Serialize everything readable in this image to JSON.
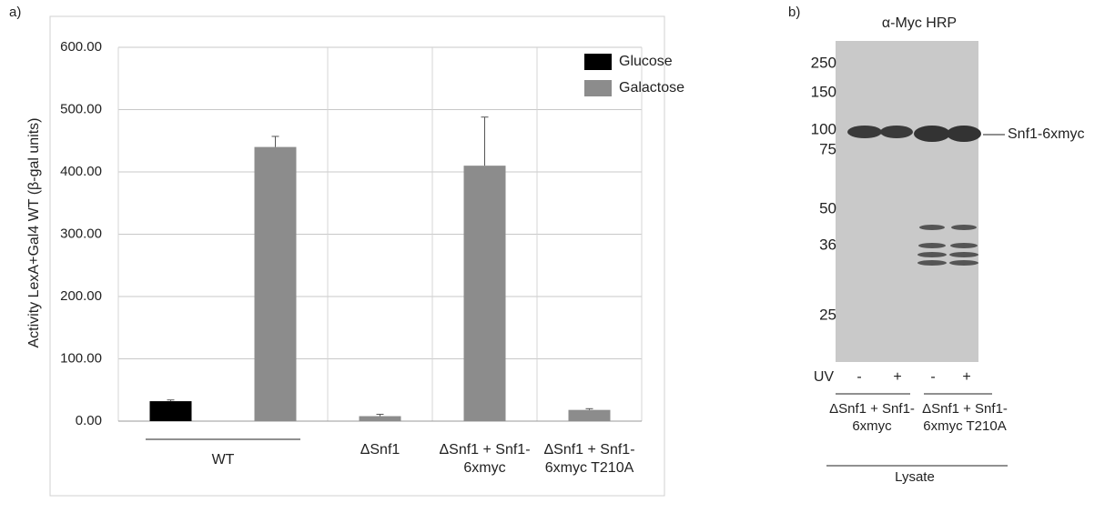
{
  "panel_a": {
    "label": "a)"
  },
  "panel_b": {
    "label": "b)"
  },
  "chart_data": {
    "type": "bar",
    "y_label": "Activity LexA+Gal4 WT (β-gal units)",
    "categories": [
      null,
      null,
      "ΔSnf1",
      "ΔSnf1 + Snf1-6xmyc",
      "ΔSnf1 + Snf1-6xmyc T210A"
    ],
    "groups": [
      {
        "label": "WT",
        "categories": [
          0,
          1
        ]
      }
    ],
    "series": [
      {
        "name": "Glucose",
        "color": "#000000",
        "values": [
          32,
          null,
          null,
          null,
          null
        ],
        "errors": [
          2,
          null,
          null,
          null,
          null
        ]
      },
      {
        "name": "Galactose",
        "color": "#8c8c8c",
        "values": [
          null,
          440,
          8,
          410,
          18
        ],
        "errors": [
          null,
          17,
          3,
          78,
          2
        ]
      }
    ],
    "ylim": [
      0,
      600
    ],
    "yticks": [
      {
        "value": 0,
        "label": "0.00"
      },
      {
        "value": 100,
        "label": "100.00"
      },
      {
        "value": 200,
        "label": "200.00"
      },
      {
        "value": 300,
        "label": "300.00"
      },
      {
        "value": 400,
        "label": "400.00"
      },
      {
        "value": 500,
        "label": "500.00"
      },
      {
        "value": 600,
        "label": "600.00"
      }
    ],
    "grid": true,
    "legend": "top-right"
  },
  "blot": {
    "title": "α-Myc HRP",
    "markers": [
      250,
      150,
      100,
      75,
      50,
      36,
      25
    ],
    "band_label": "Snf1-6xmyc",
    "uv_label": "UV",
    "lanes": [
      "-",
      "+",
      "-",
      "+"
    ],
    "groups": [
      "ΔSnf1 + Snf1-6xmyc",
      "ΔSnf1 + Snf1-6xmyc T210A"
    ],
    "footer": "Lysate"
  }
}
